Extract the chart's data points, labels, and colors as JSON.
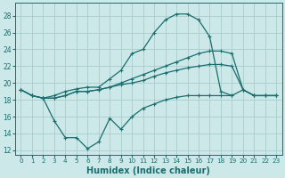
{
  "xlabel": "Humidex (Indice chaleur)",
  "bg_color": "#cce8e8",
  "grid_color": "#aacccc",
  "line_color": "#1a6e6e",
  "xlim": [
    -0.5,
    23.5
  ],
  "ylim": [
    11.5,
    29.5
  ],
  "xticks": [
    0,
    1,
    2,
    3,
    4,
    5,
    6,
    7,
    8,
    9,
    10,
    11,
    12,
    13,
    14,
    15,
    16,
    17,
    18,
    19,
    20,
    21,
    22,
    23
  ],
  "yticks": [
    12,
    14,
    16,
    18,
    20,
    22,
    24,
    26,
    28
  ],
  "line_top": {
    "x": [
      0,
      1,
      2,
      3,
      4,
      5,
      6,
      7,
      8,
      9,
      10,
      11,
      12,
      13,
      14,
      15,
      16,
      17,
      18,
      19
    ],
    "y": [
      19.2,
      18.5,
      18.2,
      18.5,
      19.0,
      19.3,
      19.5,
      19.5,
      20.5,
      21.5,
      23.5,
      24.0,
      26.0,
      27.5,
      28.2,
      28.2,
      27.5,
      25.5,
      19.0,
      18.5
    ]
  },
  "line_upper_mid": {
    "x": [
      0,
      1,
      2,
      3,
      4,
      5,
      6,
      7,
      8,
      9,
      10,
      11,
      12,
      13,
      14,
      15,
      16,
      17,
      18,
      19,
      20,
      21,
      22,
      23
    ],
    "y": [
      19.2,
      18.5,
      18.2,
      18.2,
      18.5,
      19.0,
      19.0,
      19.2,
      19.5,
      20.0,
      20.5,
      21.0,
      21.5,
      22.0,
      22.5,
      23.0,
      23.5,
      23.8,
      23.8,
      23.5,
      19.2,
      18.5,
      18.5,
      18.5
    ]
  },
  "line_lower_mid": {
    "x": [
      0,
      1,
      2,
      3,
      4,
      5,
      6,
      7,
      8,
      9,
      10,
      11,
      12,
      13,
      14,
      15,
      16,
      17,
      18,
      19,
      20,
      21,
      22,
      23
    ],
    "y": [
      19.2,
      18.5,
      18.2,
      18.2,
      18.5,
      19.0,
      19.0,
      19.2,
      19.5,
      19.8,
      20.0,
      20.3,
      20.8,
      21.2,
      21.5,
      21.8,
      22.0,
      22.2,
      22.2,
      22.0,
      19.2,
      18.5,
      18.5,
      18.5
    ]
  },
  "line_bot": {
    "x": [
      2,
      3,
      4,
      5,
      6,
      7,
      8,
      9,
      10,
      11,
      12,
      13,
      14,
      15,
      16,
      17,
      18,
      19,
      20,
      21,
      22,
      23
    ],
    "y": [
      18.2,
      15.5,
      13.5,
      13.5,
      12.2,
      13.0,
      15.8,
      14.5,
      16.0,
      17.0,
      17.5,
      18.0,
      18.3,
      18.5,
      18.5,
      18.5,
      18.5,
      18.5,
      19.2,
      18.5,
      18.5,
      18.5
    ]
  }
}
